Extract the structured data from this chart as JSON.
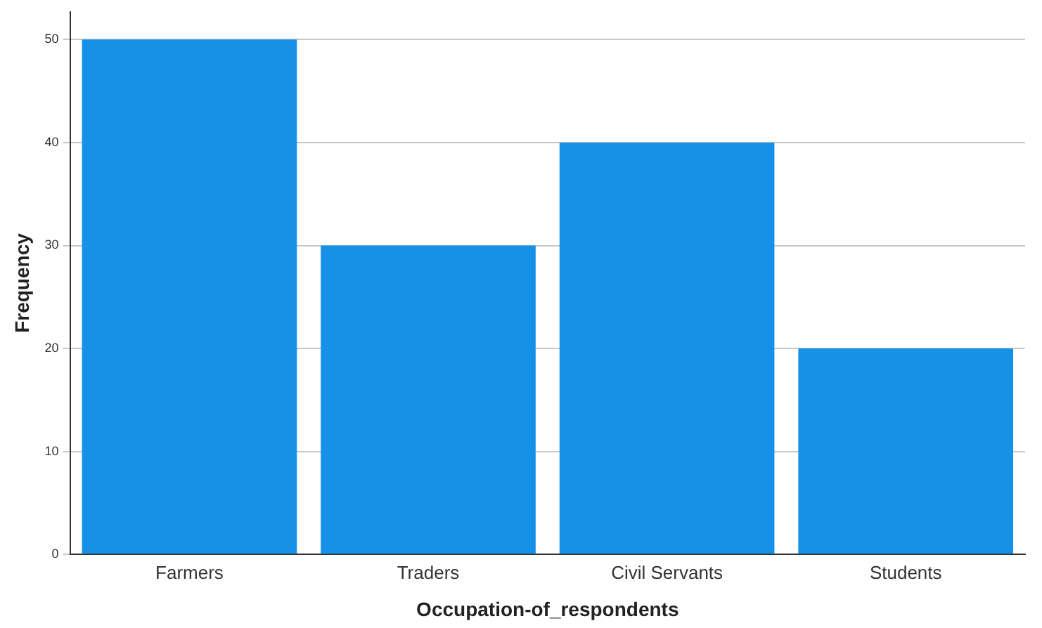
{
  "chart_data": {
    "type": "bar",
    "xlabel": "Occupation-of_respondents",
    "ylabel": "Frequency",
    "categories": [
      "Farmers",
      "Traders",
      "Civil Servants",
      "Students"
    ],
    "values": [
      50,
      30,
      40,
      20
    ],
    "color": "#1591e8",
    "ylim": [
      0,
      52.7
    ],
    "yticks": [
      0,
      10,
      20,
      30,
      40,
      50
    ],
    "grid": "y"
  }
}
